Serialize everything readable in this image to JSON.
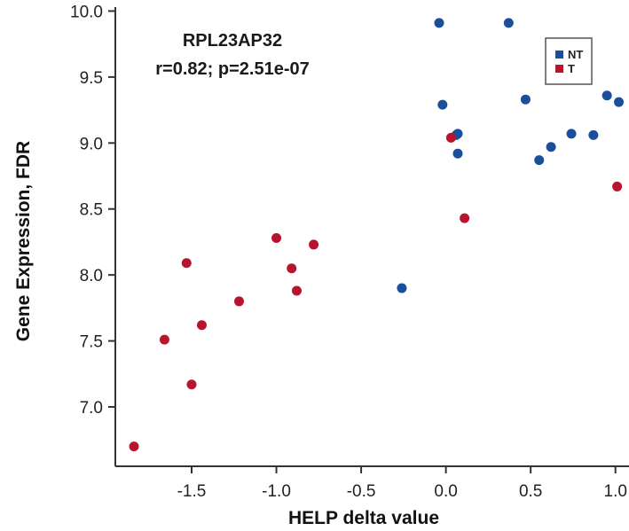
{
  "chart_data": {
    "type": "scatter",
    "title": "",
    "xlabel": "HELP delta value",
    "ylabel": "Gene Expression, FDR",
    "xlim": [
      -1.95,
      1.08
    ],
    "ylim": [
      6.55,
      10.03
    ],
    "xticks": [
      -1.5,
      -1.0,
      -0.5,
      0.0,
      0.5,
      1.0
    ],
    "xtick_labels": [
      "-1.5",
      "-1.0",
      "-0.5",
      "0.0",
      "0.5",
      "1.0"
    ],
    "yticks": [
      7.0,
      7.5,
      8.0,
      8.5,
      9.0,
      9.5,
      10.0
    ],
    "ytick_labels": [
      "7.0",
      "7.5",
      "8.0",
      "8.5",
      "9.0",
      "9.5",
      "10.0"
    ],
    "grid": false,
    "legend_position": "top-right",
    "annotations": [
      "RPL23AP32",
      "r=0.82; p=2.51e-07"
    ],
    "series": [
      {
        "name": "NT",
        "color": "#1b4f9c",
        "points": [
          [
            -0.04,
            9.91
          ],
          [
            0.37,
            9.91
          ],
          [
            -0.02,
            9.29
          ],
          [
            0.47,
            9.33
          ],
          [
            0.95,
            9.36
          ],
          [
            1.02,
            9.31
          ],
          [
            0.07,
            9.07
          ],
          [
            0.06,
            9.06
          ],
          [
            0.74,
            9.07
          ],
          [
            0.87,
            9.06
          ],
          [
            0.62,
            8.97
          ],
          [
            0.55,
            8.87
          ],
          [
            0.07,
            8.92
          ],
          [
            -0.26,
            7.9
          ]
        ]
      },
      {
        "name": "T",
        "color": "#b7142e",
        "points": [
          [
            0.03,
            9.04
          ],
          [
            1.01,
            8.67
          ],
          [
            0.11,
            8.43
          ],
          [
            -1.0,
            8.28
          ],
          [
            -0.78,
            8.23
          ],
          [
            -1.53,
            8.09
          ],
          [
            -0.91,
            8.05
          ],
          [
            -0.88,
            7.88
          ],
          [
            -1.22,
            7.8
          ],
          [
            -1.44,
            7.62
          ],
          [
            -1.66,
            7.51
          ],
          [
            -1.5,
            7.17
          ],
          [
            -1.84,
            6.7
          ]
        ]
      }
    ]
  }
}
